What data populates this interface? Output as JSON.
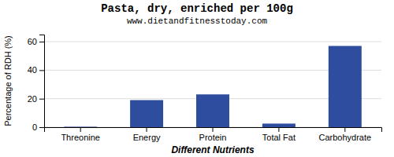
{
  "chart_data": {
    "type": "bar",
    "title": "Pasta, dry, enriched per 100g",
    "subtitle": "www.dietandfitnesstoday.com",
    "xlabel": "Different Nutrients",
    "ylabel": "Percentage of RDH (%)",
    "categories": [
      "Threonine",
      "Energy",
      "Protein",
      "Total Fat",
      "Carbohydrate"
    ],
    "values": [
      0.3,
      19,
      23,
      2.5,
      57
    ],
    "color": "#2e4d9e",
    "ylim": [
      0,
      65
    ],
    "yticks": [
      0,
      20,
      40,
      60
    ],
    "grid": true
  }
}
